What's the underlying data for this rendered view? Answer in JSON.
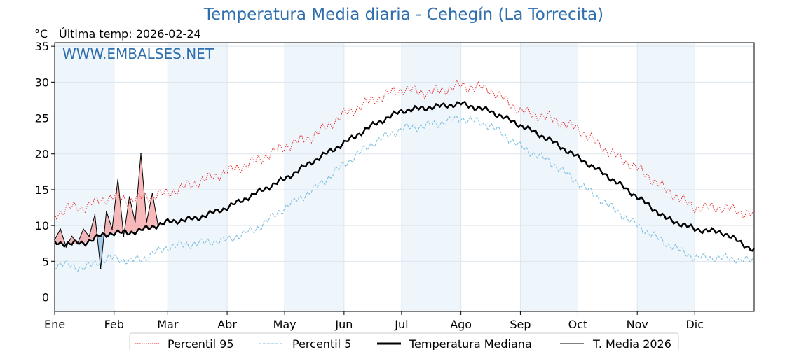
{
  "header": {
    "title": "Temperatura Media diaria - Cehegín (La Torrecita)",
    "unit": "°C",
    "last_temp": "Última temp: 2026-02-24"
  },
  "watermark": "WWW.EMBALSES.NET",
  "colors": {
    "p95": "#e41a1c",
    "p5": "#7fbfdf",
    "median": "#000000",
    "current": "#000000",
    "above_fill": "#f08080",
    "below_fill": "#87b9e0",
    "band": "#eef5fb",
    "title": "#2f6fad"
  },
  "chart_data": {
    "type": "line",
    "title": "Temperatura Media diaria - Cehegín (La Torrecita)",
    "ylabel": "°C",
    "ylim": [
      -2,
      35.5
    ],
    "yticks": [
      0,
      5,
      10,
      15,
      20,
      25,
      30,
      35
    ],
    "xlim": [
      1,
      366
    ],
    "months": [
      {
        "label": "Ene",
        "day": 1
      },
      {
        "label": "Feb",
        "day": 32
      },
      {
        "label": "Mar",
        "day": 60
      },
      {
        "label": "Abr",
        "day": 91
      },
      {
        "label": "May",
        "day": 121
      },
      {
        "label": "Jun",
        "day": 152
      },
      {
        "label": "Jul",
        "day": 182
      },
      {
        "label": "Ago",
        "day": 213
      },
      {
        "label": "Sep",
        "day": 244
      },
      {
        "label": "Oct",
        "day": 274
      },
      {
        "label": "Nov",
        "day": 305
      },
      {
        "label": "Dic",
        "day": 335
      }
    ],
    "grid": true,
    "legend_position": "bottom",
    "series": [
      {
        "name": "Percentil 95",
        "style": "dotted-red",
        "x_days": [
          1,
          8,
          16,
          24,
          32,
          40,
          48,
          60,
          75,
          91,
          106,
          121,
          136,
          152,
          167,
          182,
          197,
          213,
          228,
          244,
          259,
          274,
          289,
          305,
          320,
          335,
          350,
          366
        ],
        "values": [
          11.5,
          12.5,
          12.5,
          13.5,
          14.0,
          13.5,
          14.0,
          14.5,
          16.0,
          17.5,
          19.0,
          21.0,
          22.5,
          25.5,
          27.5,
          29.0,
          28.5,
          29.5,
          29.0,
          26.0,
          25.0,
          23.5,
          20.5,
          18.0,
          15.0,
          12.5,
          12.5,
          11.5
        ]
      },
      {
        "name": "Percentil 5",
        "style": "dashed-lightblue",
        "x_days": [
          1,
          8,
          16,
          24,
          32,
          40,
          48,
          60,
          75,
          91,
          106,
          121,
          136,
          152,
          167,
          182,
          197,
          213,
          228,
          244,
          259,
          274,
          289,
          305,
          320,
          335,
          350,
          366
        ],
        "values": [
          4.5,
          4.5,
          4.0,
          5.0,
          5.5,
          5.0,
          5.5,
          7.0,
          7.5,
          8.0,
          9.5,
          12.5,
          15.0,
          18.5,
          21.5,
          23.5,
          24.0,
          25.0,
          24.0,
          21.0,
          19.0,
          16.0,
          13.0,
          10.0,
          7.5,
          5.5,
          5.5,
          5.0
        ]
      },
      {
        "name": "Temperatura Mediana",
        "style": "thick-black",
        "x_days": [
          1,
          8,
          16,
          24,
          32,
          40,
          48,
          60,
          75,
          91,
          106,
          121,
          136,
          152,
          167,
          182,
          197,
          213,
          228,
          244,
          259,
          274,
          289,
          305,
          320,
          335,
          350,
          366
        ],
        "values": [
          7.5,
          7.5,
          7.5,
          8.5,
          9.0,
          9.0,
          9.5,
          10.5,
          11.0,
          12.5,
          14.5,
          16.5,
          19.0,
          21.5,
          24.0,
          26.0,
          26.5,
          27.0,
          26.0,
          24.0,
          22.0,
          19.5,
          17.0,
          14.0,
          11.0,
          9.5,
          9.0,
          6.5
        ]
      },
      {
        "name": "T. Media 2026",
        "style": "thin-black",
        "x_days": [
          1,
          4,
          7,
          10,
          13,
          16,
          19,
          22,
          25,
          28,
          31,
          34,
          37,
          40,
          43,
          46,
          49,
          52,
          55
        ],
        "values": [
          8.0,
          9.5,
          7.0,
          8.5,
          7.5,
          9.5,
          8.5,
          11.5,
          4.0,
          12.0,
          9.5,
          16.5,
          8.5,
          14.0,
          10.5,
          20.0,
          10.5,
          14.5,
          10.0
        ]
      }
    ]
  },
  "legend": {
    "items": [
      "Percentil 95",
      "Percentil 5",
      "Temperatura Mediana",
      "T. Media 2026"
    ]
  }
}
